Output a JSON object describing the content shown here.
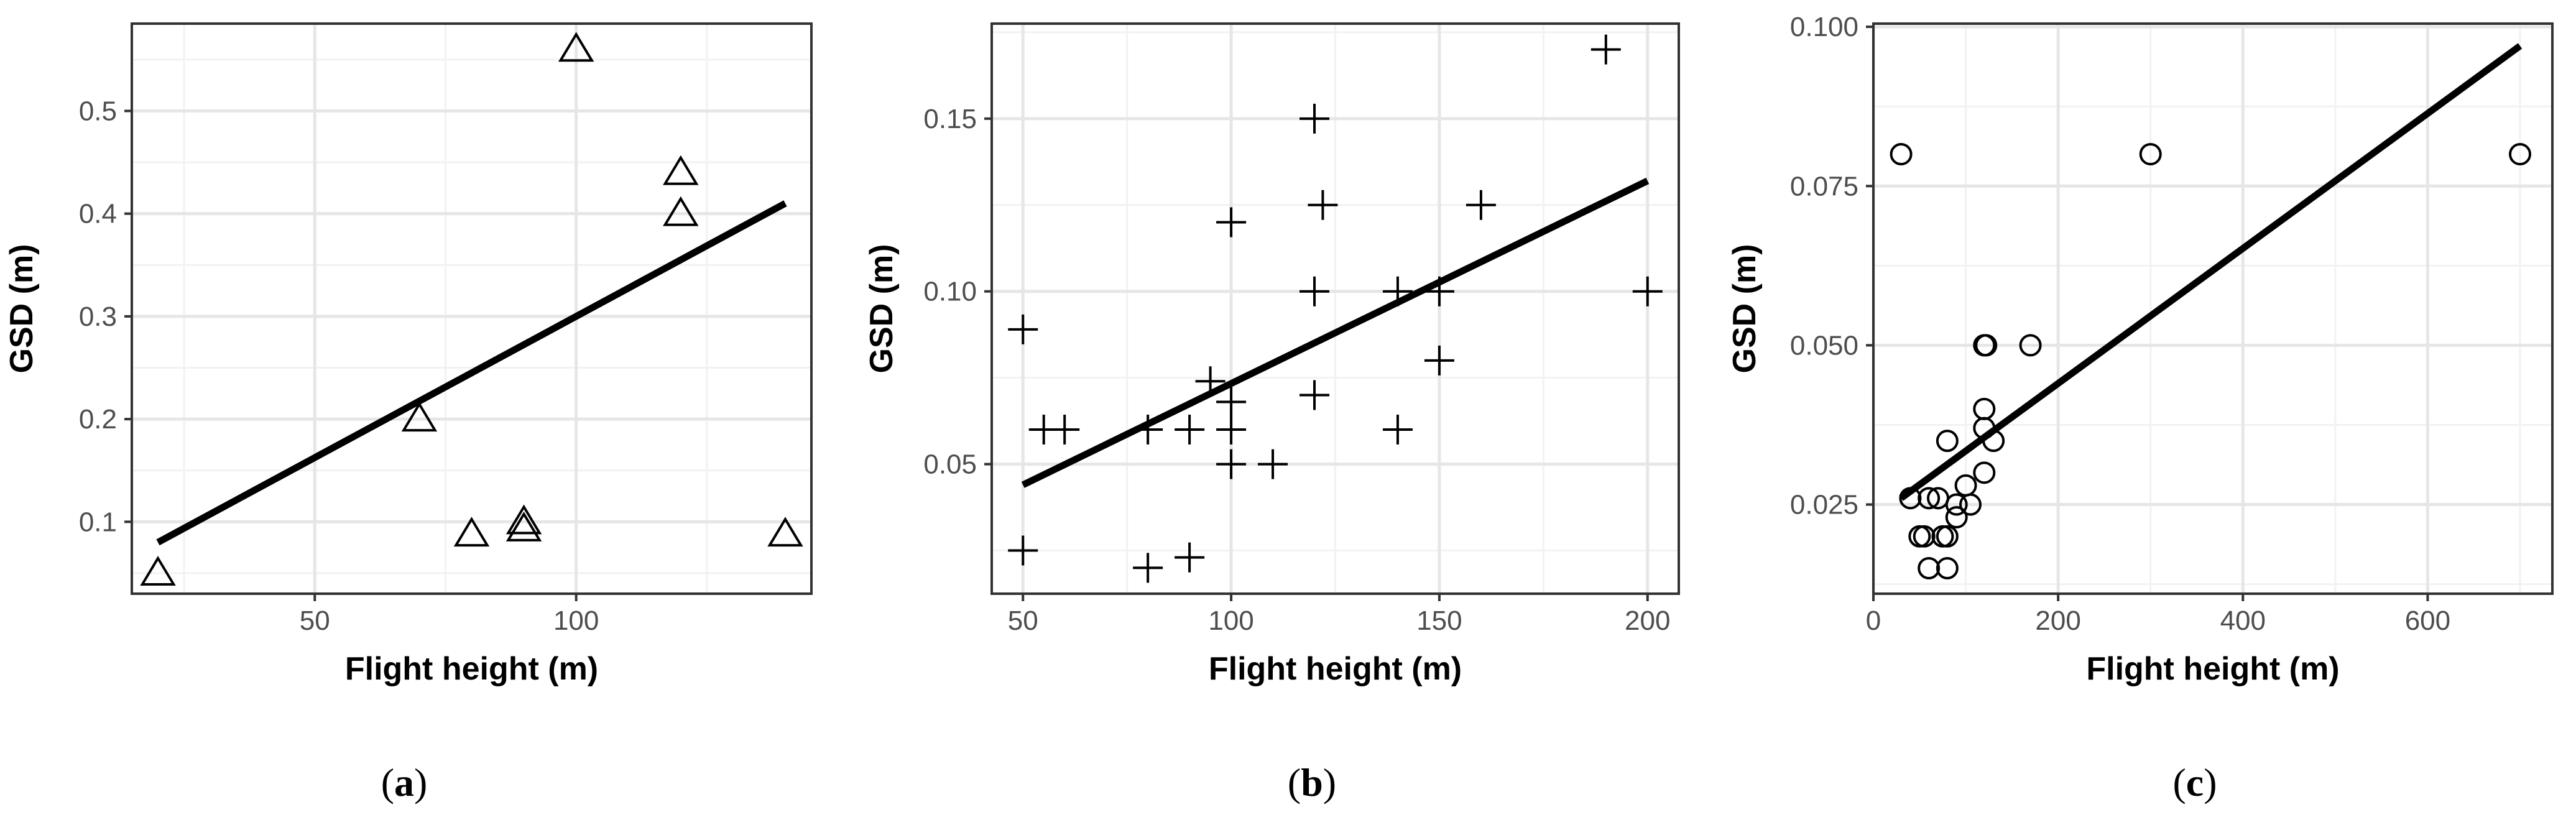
{
  "colors": {
    "panel_bg": "#ffffff",
    "grid_major": "#e6e6e6",
    "grid_minor": "#f2f2f2",
    "frame": "#333333",
    "point": "#000000",
    "fit_line": "#000000"
  },
  "chart_data": [
    {
      "type": "scatter",
      "panel_label": "a",
      "marker": "triangle",
      "xlabel": "Flight height (m)",
      "ylabel": "GSD (m)",
      "xlim": [
        15,
        145
      ],
      "ylim": [
        0.03,
        0.585
      ],
      "xticks": [
        50,
        100
      ],
      "xtick_labels": [
        "50",
        "100"
      ],
      "yticks": [
        0.1,
        0.2,
        0.3,
        0.4,
        0.5
      ],
      "ytick_labels": [
        "0.1",
        "0.2",
        "0.3",
        "0.4",
        "0.5"
      ],
      "grid": true,
      "points": [
        {
          "x": 20,
          "y": 0.05
        },
        {
          "x": 70,
          "y": 0.2
        },
        {
          "x": 80,
          "y": 0.088
        },
        {
          "x": 90,
          "y": 0.1
        },
        {
          "x": 90,
          "y": 0.093
        },
        {
          "x": 100,
          "y": 0.56
        },
        {
          "x": 120,
          "y": 0.44
        },
        {
          "x": 120,
          "y": 0.4
        },
        {
          "x": 140,
          "y": 0.088
        }
      ],
      "fit_line": [
        {
          "x": 20,
          "y": 0.08
        },
        {
          "x": 140,
          "y": 0.41
        }
      ]
    },
    {
      "type": "scatter",
      "panel_label": "b",
      "marker": "plus",
      "xlabel": "Flight height (m)",
      "ylabel": "GSD (m)",
      "xlim": [
        42.5,
        207.5
      ],
      "ylim": [
        0.0125,
        0.1775
      ],
      "xticks": [
        50,
        100,
        150,
        200
      ],
      "xtick_labels": [
        "50",
        "100",
        "150",
        "200"
      ],
      "yticks": [
        0.05,
        0.1,
        0.15
      ],
      "ytick_labels": [
        "0.05",
        "0.10",
        "0.15"
      ],
      "grid": true,
      "points": [
        {
          "x": 50,
          "y": 0.089
        },
        {
          "x": 50,
          "y": 0.025
        },
        {
          "x": 55,
          "y": 0.06
        },
        {
          "x": 60,
          "y": 0.06
        },
        {
          "x": 80,
          "y": 0.06
        },
        {
          "x": 80,
          "y": 0.02
        },
        {
          "x": 90,
          "y": 0.06
        },
        {
          "x": 90,
          "y": 0.023
        },
        {
          "x": 95,
          "y": 0.074
        },
        {
          "x": 100,
          "y": 0.12
        },
        {
          "x": 100,
          "y": 0.068
        },
        {
          "x": 100,
          "y": 0.06
        },
        {
          "x": 100,
          "y": 0.05
        },
        {
          "x": 110,
          "y": 0.05
        },
        {
          "x": 120,
          "y": 0.15
        },
        {
          "x": 120,
          "y": 0.1
        },
        {
          "x": 120,
          "y": 0.07
        },
        {
          "x": 122,
          "y": 0.125
        },
        {
          "x": 140,
          "y": 0.1
        },
        {
          "x": 140,
          "y": 0.06
        },
        {
          "x": 150,
          "y": 0.1
        },
        {
          "x": 150,
          "y": 0.08
        },
        {
          "x": 160,
          "y": 0.125
        },
        {
          "x": 190,
          "y": 0.17
        },
        {
          "x": 200,
          "y": 0.1
        }
      ],
      "fit_line": [
        {
          "x": 50,
          "y": 0.044
        },
        {
          "x": 200,
          "y": 0.132
        }
      ]
    },
    {
      "type": "scatter",
      "panel_label": "c",
      "marker": "circle",
      "xlabel": "Flight height (m)",
      "ylabel": "GSD (m)",
      "xlim": [
        0,
        735
      ],
      "ylim": [
        0.011,
        0.1005
      ],
      "xticks": [
        0,
        200,
        400,
        600
      ],
      "xtick_labels": [
        "0",
        "200",
        "400",
        "600"
      ],
      "yticks": [
        0.025,
        0.05,
        0.075,
        0.1
      ],
      "ytick_labels": [
        "0.025",
        "0.050",
        "0.075",
        "0.100"
      ],
      "grid": true,
      "points": [
        {
          "x": 30,
          "y": 0.08
        },
        {
          "x": 300,
          "y": 0.08
        },
        {
          "x": 700,
          "y": 0.08
        },
        {
          "x": 120,
          "y": 0.05
        },
        {
          "x": 122,
          "y": 0.05
        },
        {
          "x": 170,
          "y": 0.05
        },
        {
          "x": 120,
          "y": 0.04
        },
        {
          "x": 120,
          "y": 0.037
        },
        {
          "x": 80,
          "y": 0.035
        },
        {
          "x": 130,
          "y": 0.035
        },
        {
          "x": 120,
          "y": 0.03
        },
        {
          "x": 100,
          "y": 0.028
        },
        {
          "x": 40,
          "y": 0.026
        },
        {
          "x": 60,
          "y": 0.026
        },
        {
          "x": 70,
          "y": 0.026
        },
        {
          "x": 90,
          "y": 0.025
        },
        {
          "x": 105,
          "y": 0.025
        },
        {
          "x": 90,
          "y": 0.023
        },
        {
          "x": 50,
          "y": 0.02
        },
        {
          "x": 55,
          "y": 0.02
        },
        {
          "x": 75,
          "y": 0.02
        },
        {
          "x": 80,
          "y": 0.02
        },
        {
          "x": 60,
          "y": 0.015
        },
        {
          "x": 80,
          "y": 0.015
        }
      ],
      "fit_line": [
        {
          "x": 30,
          "y": 0.026
        },
        {
          "x": 700,
          "y": 0.097
        }
      ]
    }
  ]
}
